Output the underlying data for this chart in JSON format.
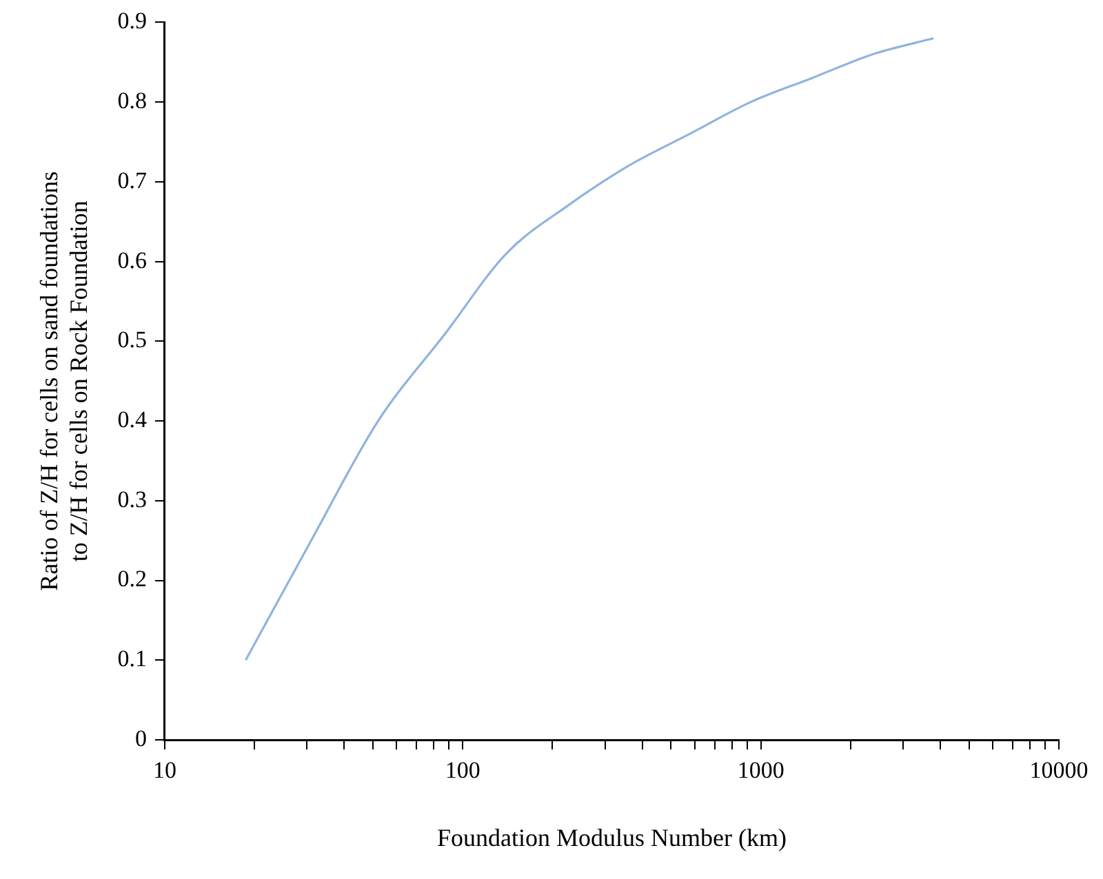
{
  "chart_data": {
    "type": "line",
    "xlabel": "Foundation Modulus Number (km)",
    "ylabel": "Ratio of Z/H for cells on sand foundations\nto Z/H for cells on Rock Foundation",
    "log": "x",
    "grid": false,
    "legend": false,
    "marker": "none",
    "line_style": "solid",
    "xlim": [
      10,
      10000
    ],
    "xticks": [
      10,
      {
        "value": 20,
        "label": null
      },
      {
        "value": 30,
        "label": null
      },
      {
        "value": 40,
        "label": null
      },
      {
        "value": 50,
        "label": null
      },
      {
        "value": 60,
        "label": null
      },
      {
        "value": 70,
        "label": null
      },
      {
        "value": 80,
        "label": null
      },
      {
        "value": 90,
        "label": null
      },
      100,
      {
        "value": 200,
        "label": null
      },
      {
        "value": 300,
        "label": null
      },
      {
        "value": 400,
        "label": null
      },
      {
        "value": 500,
        "label": null
      },
      {
        "value": 600,
        "label": null
      },
      {
        "value": 700,
        "label": null
      },
      {
        "value": 800,
        "label": null
      },
      {
        "value": 900,
        "label": null
      },
      1000,
      {
        "value": 2000,
        "label": null
      },
      {
        "value": 3000,
        "label": null
      },
      {
        "value": 4000,
        "label": null
      },
      {
        "value": 5000,
        "label": null
      },
      {
        "value": 6000,
        "label": null
      },
      {
        "value": 7000,
        "label": null
      },
      {
        "value": 8000,
        "label": null
      },
      {
        "value": 9000,
        "label": null
      },
      10000
    ],
    "ylim": [
      0,
      0.9
    ],
    "yticks": [
      0,
      0.1,
      0.2,
      0.3,
      0.4,
      0.5,
      0.6,
      0.7,
      0.8,
      0.9
    ],
    "series": [
      {
        "color": "#8fb4dc",
        "x": [
          18.7,
          31,
          52,
          87.5,
          140,
          225,
          360,
          577,
          925,
          1483,
          2377,
          3800
        ],
        "values": [
          0.1,
          0.25,
          0.4,
          0.51,
          0.61,
          0.67,
          0.72,
          0.76,
          0.8,
          0.83,
          0.86,
          0.88
        ]
      }
    ]
  }
}
